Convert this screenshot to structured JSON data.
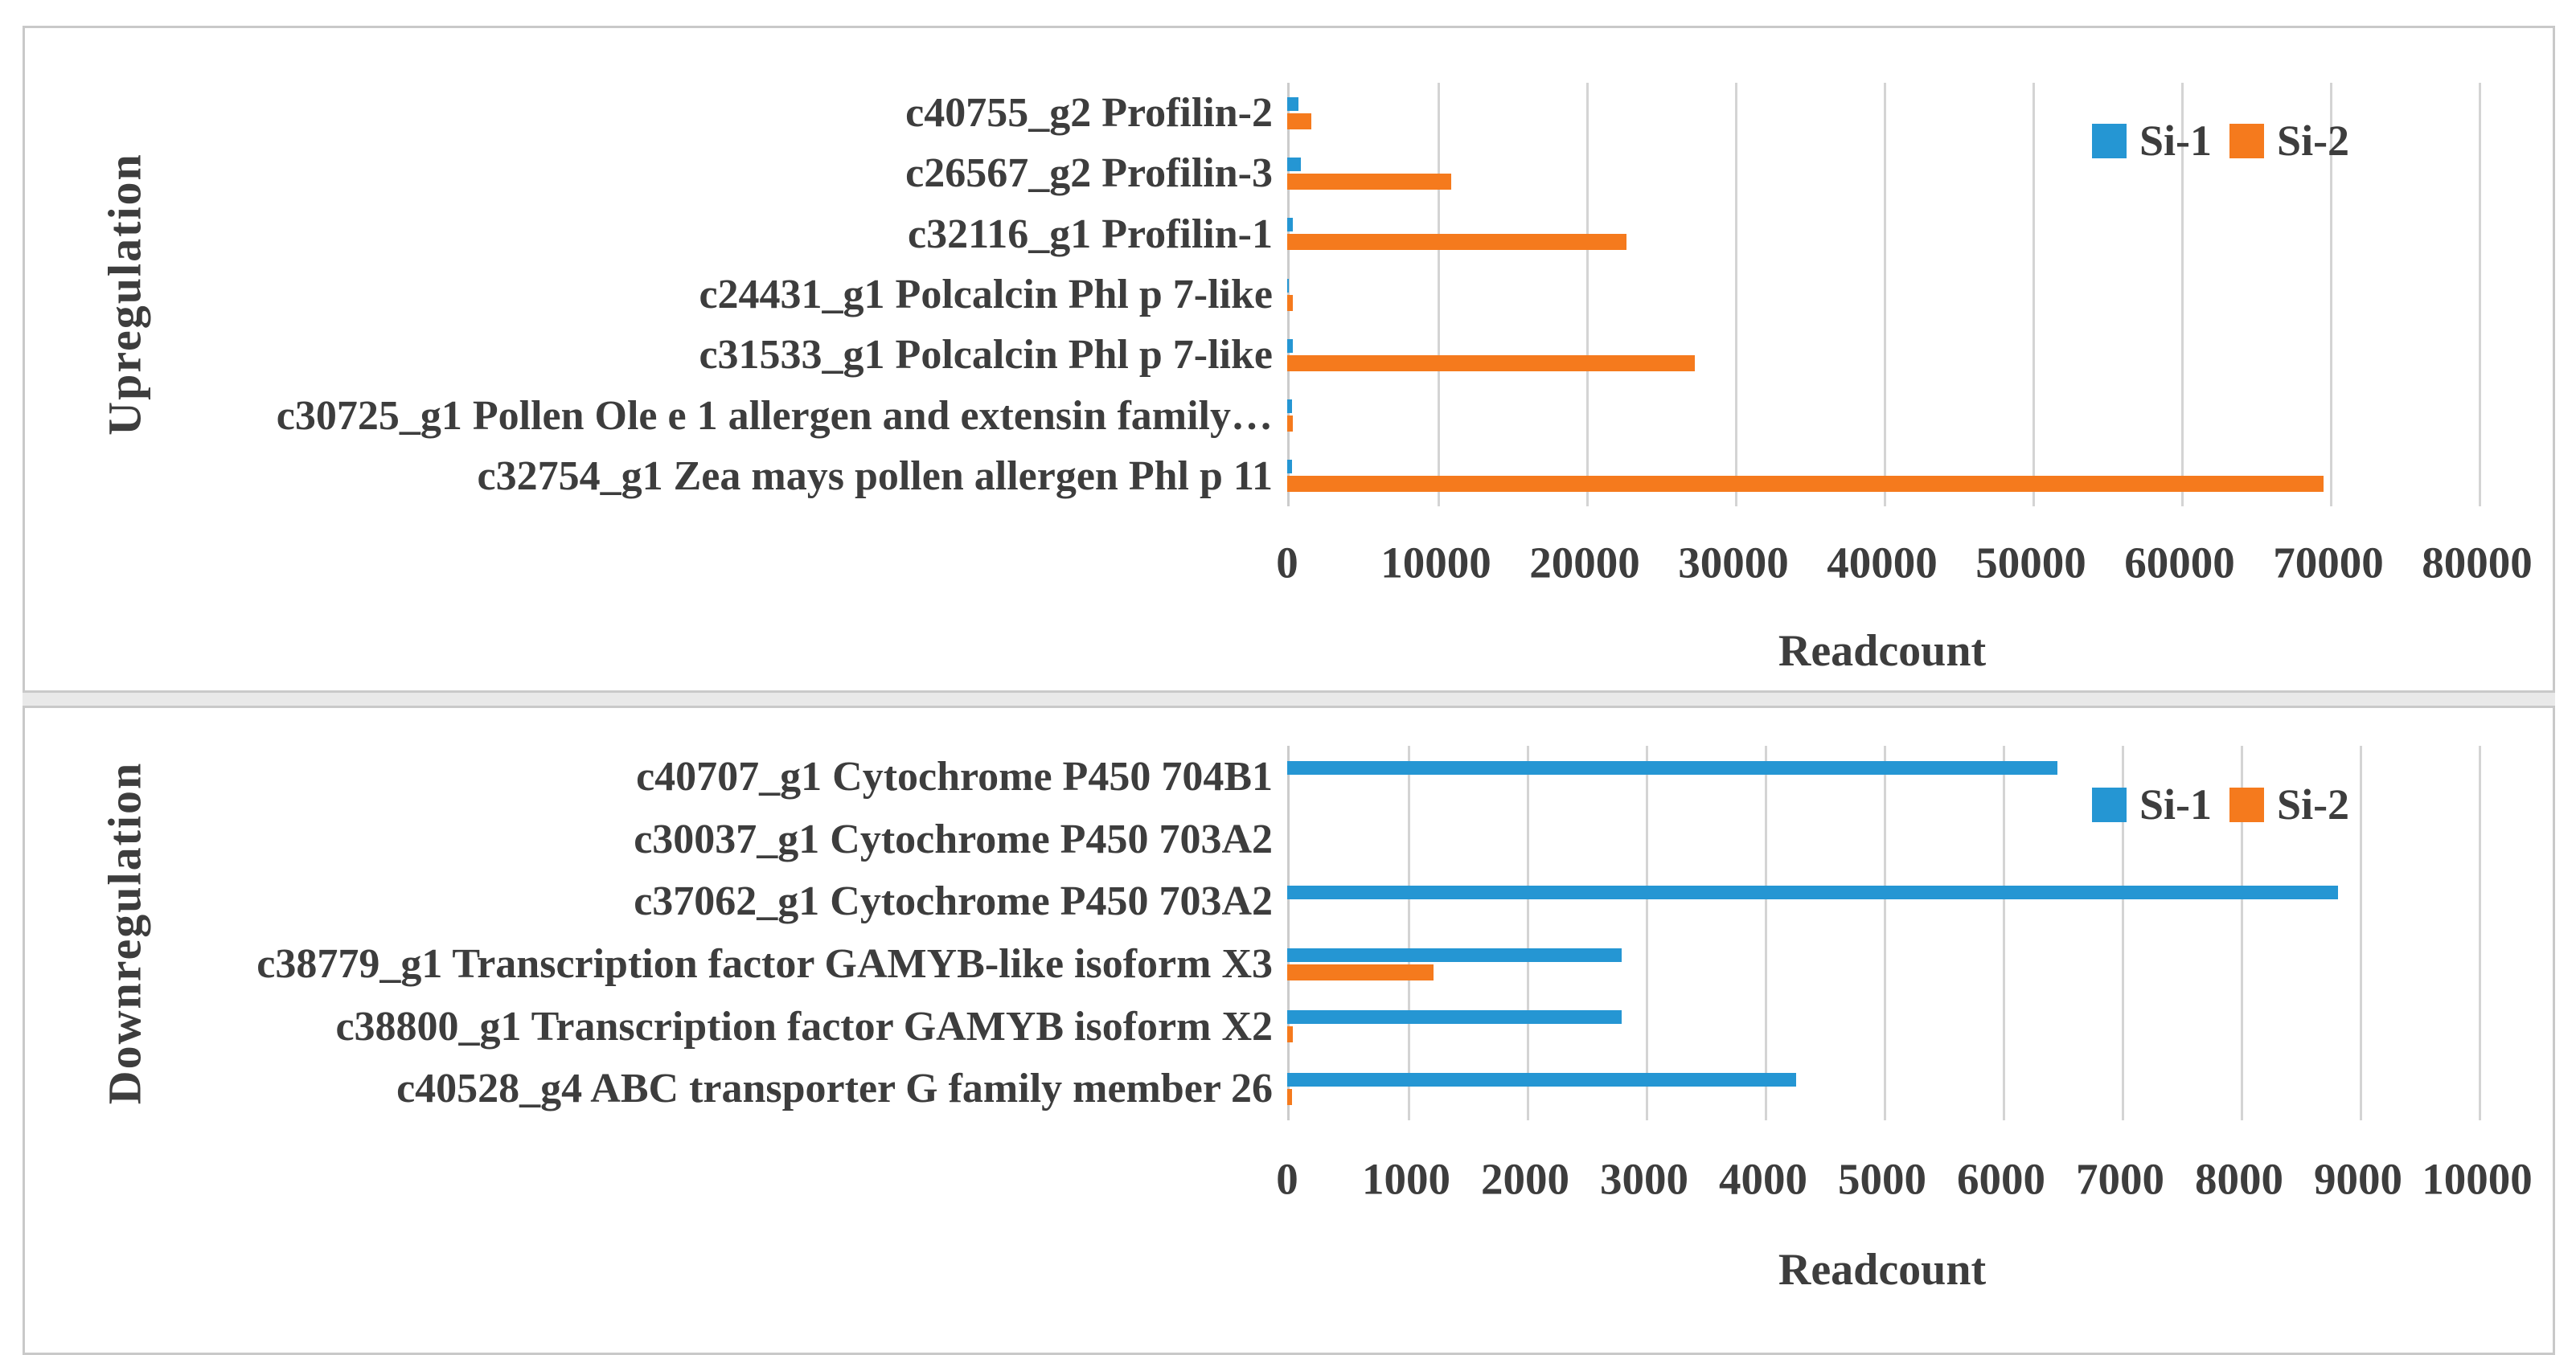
{
  "chart_data": [
    {
      "type": "bar",
      "orientation": "horizontal",
      "ylabel": "Upregulation",
      "xlabel": "Readcount",
      "categories": [
        "c40755_g2 Profilin-2",
        "c26567_g2 Profilin-3",
        "c32116_g1 Profilin-1",
        "c24431_g1 Polcalcin Phl p 7-like",
        "c31533_g1 Polcalcin Phl p 7-like",
        "c30725_g1 Pollen Ole e 1 allergen and extensin family…",
        "c32754_g1 Zea mays pollen allergen Phl p 11"
      ],
      "series": [
        {
          "name": "Si-1",
          "color": "#2596D3",
          "values": [
            750,
            900,
            400,
            100,
            400,
            300,
            350
          ]
        },
        {
          "name": "Si-2",
          "color": "#F57A1D",
          "values": [
            1600,
            11000,
            22800,
            400,
            27400,
            400,
            69700
          ]
        }
      ],
      "xlim": [
        0,
        80000
      ],
      "tick_values": [
        0,
        10000,
        20000,
        30000,
        40000,
        50000,
        60000,
        70000,
        80000
      ],
      "tick_labels": [
        "0",
        "10000",
        "20000",
        "30000",
        "40000",
        "50000",
        "60000",
        "70000",
        "80000"
      ],
      "grid": true,
      "legend_position": "inside-top-right"
    },
    {
      "type": "bar",
      "orientation": "horizontal",
      "ylabel": "Downregulation",
      "xlabel": "Readcount",
      "categories": [
        "c40707_g1 Cytochrome P450 704B1",
        "c30037_g1 Cytochrome P450 703A2",
        "c37062_g1 Cytochrome P450 703A2",
        "c38779_g1 Transcription factor GAMYB-like isoform X3",
        "c38800_g1 Transcription factor GAMYB isoform X2",
        "c40528_g4 ABC transporter G family member 26"
      ],
      "series": [
        {
          "name": "Si-1",
          "color": "#2596D3",
          "values": [
            6470,
            0,
            8830,
            2810,
            2810,
            4280
          ]
        },
        {
          "name": "Si-2",
          "color": "#F57A1D",
          "values": [
            0,
            0,
            0,
            1230,
            45,
            40
          ]
        }
      ],
      "xlim": [
        0,
        10000
      ],
      "tick_values": [
        0,
        1000,
        2000,
        3000,
        4000,
        5000,
        6000,
        7000,
        8000,
        9000,
        10000
      ],
      "tick_labels": [
        "0",
        "1000",
        "2000",
        "3000",
        "4000",
        "5000",
        "6000",
        "7000",
        "8000",
        "9000",
        "10000"
      ],
      "grid": true,
      "legend_position": "inside-top-right"
    }
  ]
}
